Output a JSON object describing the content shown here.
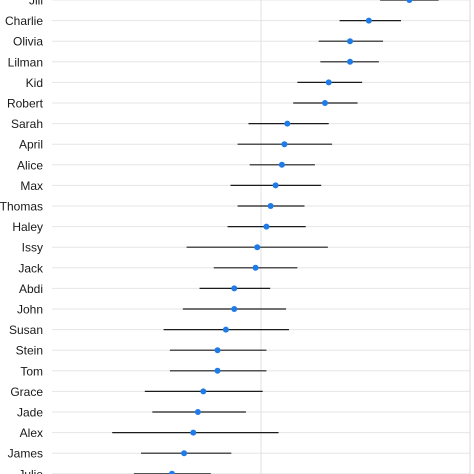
{
  "chart_data": {
    "type": "scatter",
    "subtype": "forest-plot",
    "title": "",
    "xlabel": "",
    "ylabel": "",
    "grid": true,
    "xlim": [
      0.0,
      1.0
    ],
    "reference_line_x": 0.5,
    "colors": {
      "point": "#1e7be8",
      "errorbar": "#1c1c1c",
      "grid": "#e6e6e6"
    },
    "rows": [
      {
        "name": "Jill",
        "est": 0.855,
        "lo": 0.785,
        "hi": 0.925
      },
      {
        "name": "Charlie",
        "est": 0.758,
        "lo": 0.688,
        "hi": 0.835
      },
      {
        "name": "Olivia",
        "est": 0.713,
        "lo": 0.638,
        "hi": 0.792
      },
      {
        "name": "Lilman",
        "est": 0.713,
        "lo": 0.642,
        "hi": 0.782
      },
      {
        "name": "Kid",
        "est": 0.662,
        "lo": 0.587,
        "hi": 0.742
      },
      {
        "name": "Robert",
        "est": 0.653,
        "lo": 0.577,
        "hi": 0.731
      },
      {
        "name": "Sarah",
        "est": 0.563,
        "lo": 0.47,
        "hi": 0.662
      },
      {
        "name": "April",
        "est": 0.556,
        "lo": 0.444,
        "hi": 0.67
      },
      {
        "name": "Alice",
        "est": 0.55,
        "lo": 0.473,
        "hi": 0.629
      },
      {
        "name": "Max",
        "est": 0.535,
        "lo": 0.427,
        "hi": 0.644
      },
      {
        "name": "Thomas",
        "est": 0.523,
        "lo": 0.444,
        "hi": 0.604
      },
      {
        "name": "Haley",
        "est": 0.513,
        "lo": 0.42,
        "hi": 0.607
      },
      {
        "name": "Issy",
        "est": 0.491,
        "lo": 0.322,
        "hi": 0.66
      },
      {
        "name": "Jack",
        "est": 0.487,
        "lo": 0.387,
        "hi": 0.587
      },
      {
        "name": "Abdi",
        "est": 0.436,
        "lo": 0.353,
        "hi": 0.522
      },
      {
        "name": "John",
        "est": 0.436,
        "lo": 0.313,
        "hi": 0.56
      },
      {
        "name": "Susan",
        "est": 0.416,
        "lo": 0.267,
        "hi": 0.567
      },
      {
        "name": "Stein",
        "est": 0.396,
        "lo": 0.282,
        "hi": 0.513
      },
      {
        "name": "Tom",
        "est": 0.396,
        "lo": 0.282,
        "hi": 0.513
      },
      {
        "name": "Grace",
        "est": 0.362,
        "lo": 0.222,
        "hi": 0.504
      },
      {
        "name": "Jade",
        "est": 0.349,
        "lo": 0.24,
        "hi": 0.464
      },
      {
        "name": "Alex",
        "est": 0.338,
        "lo": 0.144,
        "hi": 0.542
      },
      {
        "name": "James",
        "est": 0.316,
        "lo": 0.213,
        "hi": 0.429
      },
      {
        "name": "Julie",
        "est": 0.287,
        "lo": 0.196,
        "hi": 0.38
      }
    ]
  }
}
